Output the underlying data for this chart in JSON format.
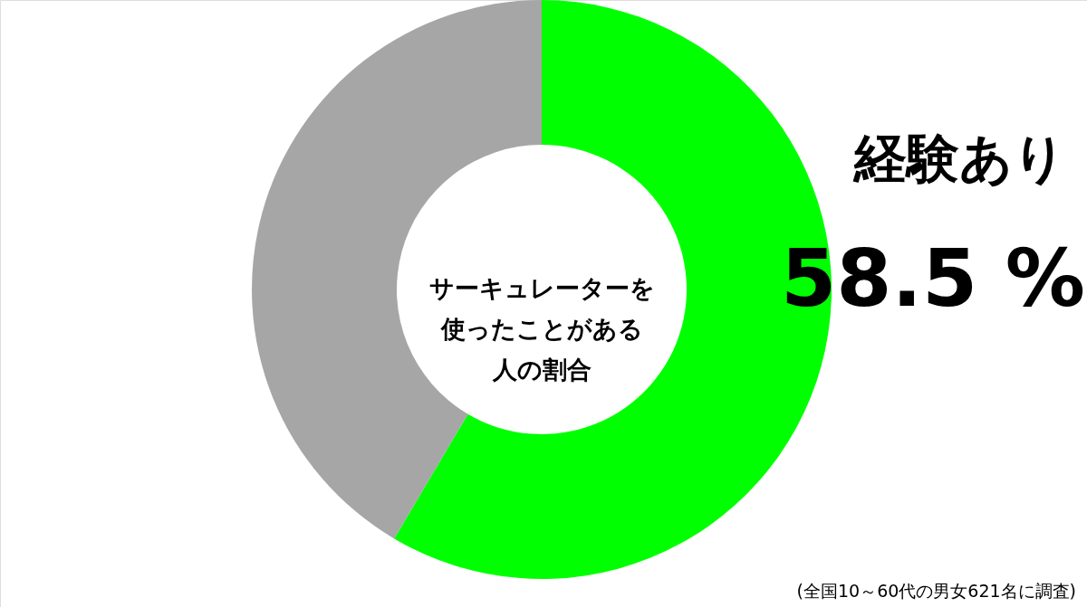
{
  "chart_data": {
    "type": "donut",
    "title": "サーキュレーターを使ったことがある人の割合",
    "categories": [
      "経験あり",
      null
    ],
    "values": [
      58.5,
      41.5
    ],
    "colors": [
      "#00ff00",
      "#a6a6a6"
    ],
    "value_labels": [
      "58.5 %",
      null
    ],
    "annotations": [
      "(全国10～60代の男女621名に調査)"
    ]
  }
}
